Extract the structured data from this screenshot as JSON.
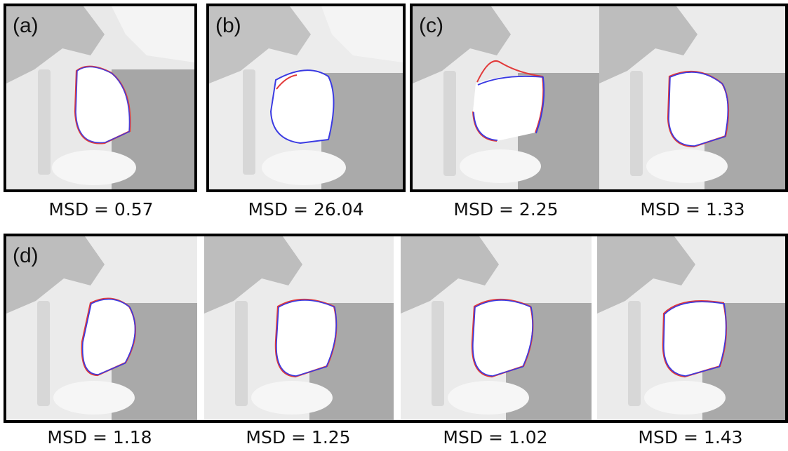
{
  "panel_labels": {
    "a": "(a)",
    "b": "(b)",
    "c": "(c)",
    "d": "(d)"
  },
  "captions": {
    "a": "MSD = 0.57",
    "b": "MSD = 26.04",
    "c1": "MSD = 2.25",
    "c2": "MSD = 1.33",
    "d1": "MSD = 1.18",
    "d2": "MSD = 1.25",
    "d3": "MSD = 1.02",
    "d4": "MSD = 1.43"
  },
  "colors": {
    "contour_reference": "#e23a3a",
    "contour_predicted": "#3a3ae2",
    "frame": "#000000"
  }
}
